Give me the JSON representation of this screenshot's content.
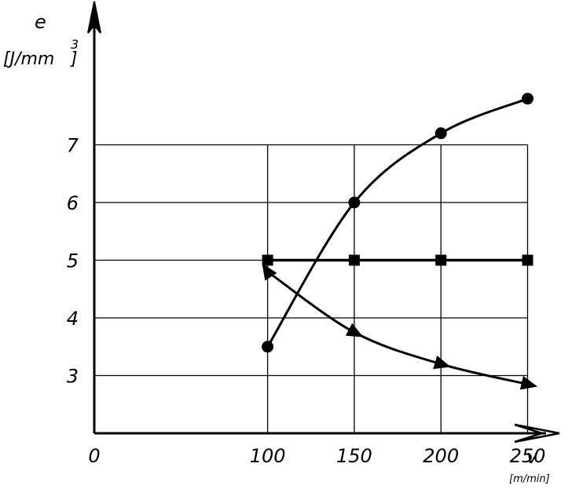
{
  "chart_data": {
    "type": "line",
    "x": [
      100,
      150,
      200,
      250
    ],
    "x_ticks": [
      "0",
      "100",
      "150",
      "200",
      "250"
    ],
    "y_ticks": [
      "3",
      "4",
      "5",
      "6",
      "7"
    ],
    "xlim": [
      0,
      250
    ],
    "ylim": [
      2,
      8
    ],
    "grid": true,
    "xlabel": "v",
    "xunit": "[m/min]",
    "ylabel": "e",
    "yunit": "[J/mm",
    "yunit_sup": "3",
    "yunit_close": "]",
    "series": [
      {
        "marker": "circle",
        "values": [
          3.5,
          6.0,
          7.2,
          7.8
        ]
      },
      {
        "marker": "square",
        "values": [
          5.0,
          5.0,
          5.0,
          5.0
        ]
      },
      {
        "marker": "triangle",
        "values": [
          4.8,
          3.75,
          3.2,
          2.85
        ]
      }
    ]
  }
}
